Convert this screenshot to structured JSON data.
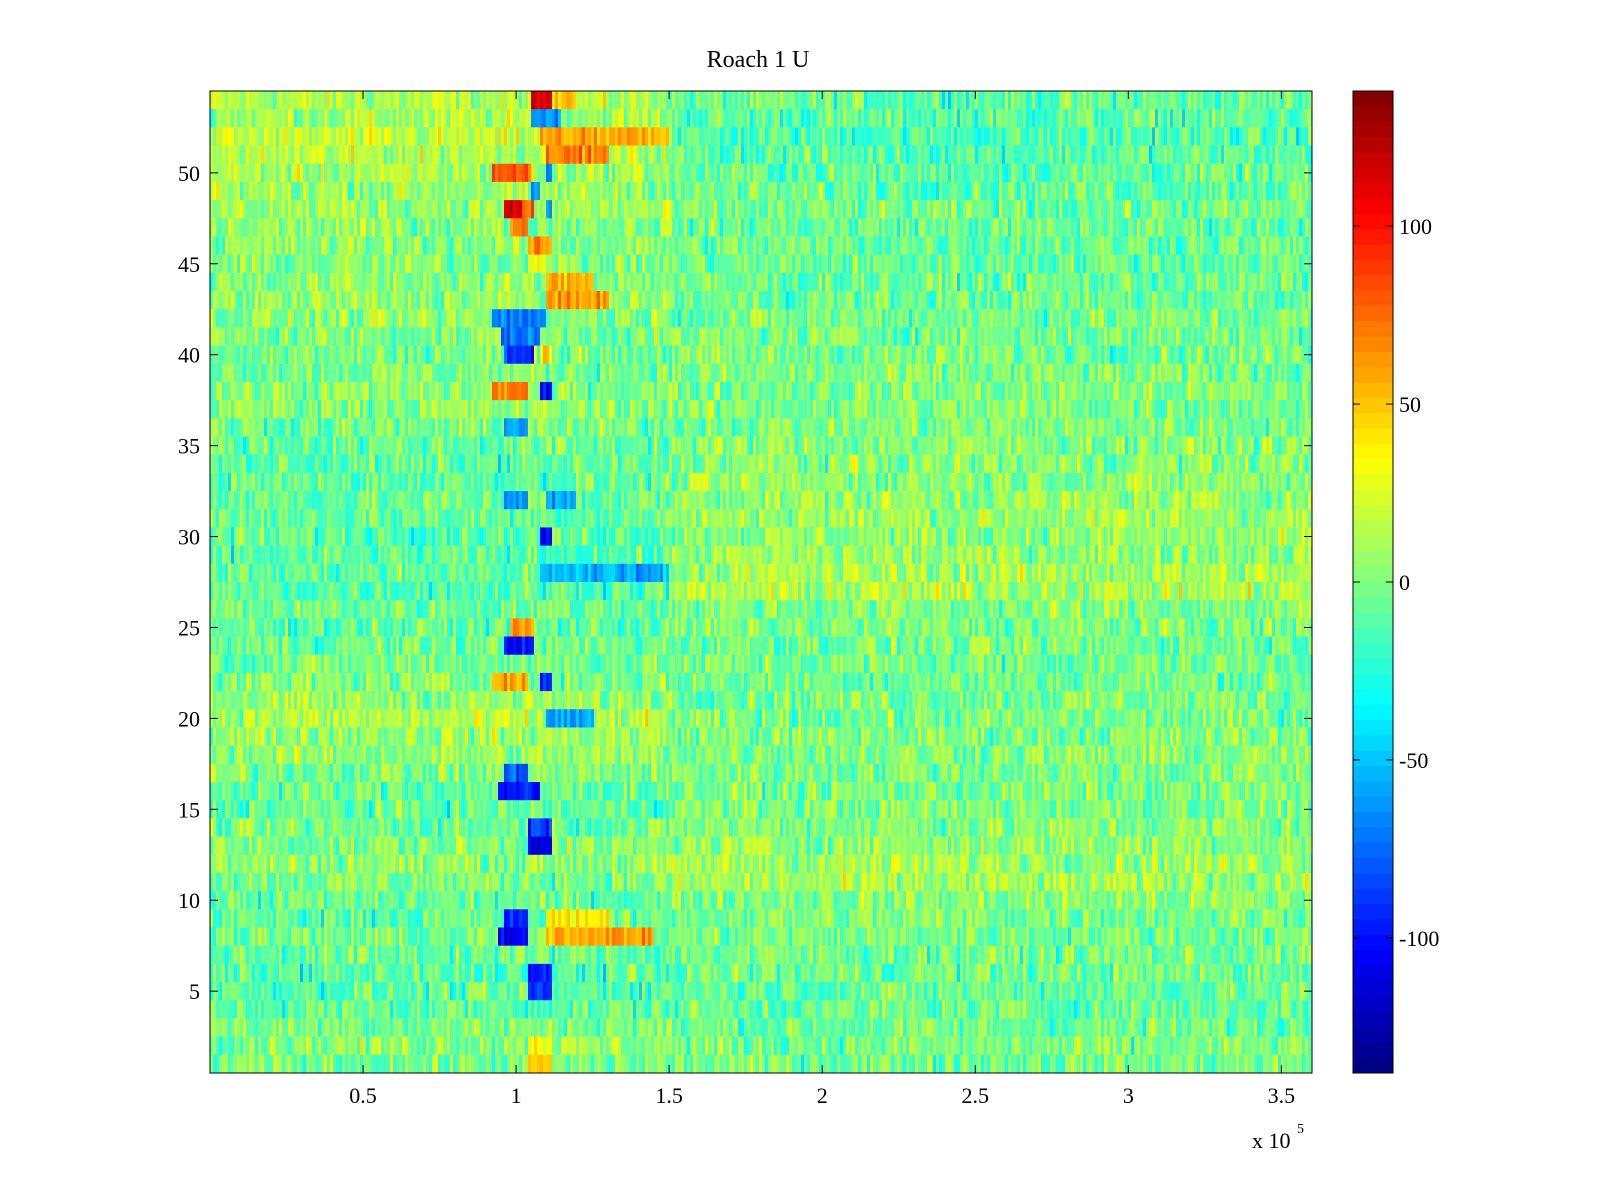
{
  "chart_data": {
    "type": "heatmap",
    "title": "Roach 1 U",
    "xlabel": "",
    "ylabel": "",
    "x_range": [
      0,
      360000
    ],
    "y_range": [
      0.5,
      54.5
    ],
    "n_rows": 54,
    "x_scale_label": {
      "base": "x 10",
      "exponent": "5"
    },
    "x_ticks": [
      {
        "value": 50000,
        "label": "0.5"
      },
      {
        "value": 100000,
        "label": "1"
      },
      {
        "value": 150000,
        "label": "1.5"
      },
      {
        "value": 200000,
        "label": "2"
      },
      {
        "value": 250000,
        "label": "2.5"
      },
      {
        "value": 300000,
        "label": "3"
      },
      {
        "value": 350000,
        "label": "3.5"
      }
    ],
    "y_ticks": [
      {
        "value": 5,
        "label": "5"
      },
      {
        "value": 10,
        "label": "10"
      },
      {
        "value": 15,
        "label": "15"
      },
      {
        "value": 20,
        "label": "20"
      },
      {
        "value": 25,
        "label": "25"
      },
      {
        "value": 30,
        "label": "30"
      },
      {
        "value": 35,
        "label": "35"
      },
      {
        "value": 40,
        "label": "40"
      },
      {
        "value": 45,
        "label": "45"
      },
      {
        "value": 50,
        "label": "50"
      }
    ],
    "colorbar": {
      "colormap": "jet",
      "range": [
        -138,
        138
      ],
      "ticks": [
        {
          "value": 100,
          "label": "100"
        },
        {
          "value": 50,
          "label": "50"
        },
        {
          "value": 0,
          "label": "0"
        },
        {
          "value": -50,
          "label": "-50"
        },
        {
          "value": -100,
          "label": "-100"
        }
      ]
    },
    "row_baselines": [
      -3,
      5,
      0,
      -8,
      -10,
      -12,
      -6,
      -4,
      -8,
      -7,
      0,
      5,
      0,
      -5,
      -8,
      -6,
      0,
      5,
      8,
      12,
      5,
      0,
      -2,
      -5,
      -8,
      -4,
      -10,
      -8,
      -12,
      -8,
      -6,
      -6,
      -8,
      -10,
      -6,
      -4,
      4,
      2,
      0,
      -2,
      0,
      3,
      4,
      3,
      0,
      2,
      4,
      8,
      8,
      10,
      14,
      16,
      10,
      12
    ],
    "late_region_baselines": [
      -2,
      -2,
      -5,
      -6,
      -6,
      -4,
      -3,
      -2,
      0,
      2,
      8,
      10,
      6,
      2,
      0,
      -2,
      0,
      2,
      0,
      -3,
      0,
      -3,
      -3,
      -3,
      -2,
      0,
      12,
      10,
      6,
      4,
      8,
      6,
      4,
      2,
      2,
      0,
      0,
      0,
      -2,
      -2,
      -2,
      -2,
      -5,
      -6,
      -6,
      -5,
      -6,
      -5,
      -6,
      -8,
      -10,
      -14,
      -10,
      -8
    ],
    "anomaly_blocks": [
      {
        "row": 54,
        "x_start": 105000,
        "x_end": 112000,
        "value": 110
      },
      {
        "row": 54,
        "x_start": 112000,
        "x_end": 120000,
        "value": 60
      },
      {
        "row": 53,
        "x_start": 105000,
        "x_end": 115000,
        "value": -60
      },
      {
        "row": 52,
        "x_start": 108000,
        "x_end": 150000,
        "value": 55
      },
      {
        "row": 51,
        "x_start": 110000,
        "x_end": 130000,
        "value": 70
      },
      {
        "row": 50,
        "x_start": 92000,
        "x_end": 105000,
        "value": 80
      },
      {
        "row": 50,
        "x_start": 110000,
        "x_end": 112000,
        "value": -70
      },
      {
        "row": 49,
        "x_start": 105000,
        "x_end": 108000,
        "value": -70
      },
      {
        "row": 48,
        "x_start": 96000,
        "x_end": 102000,
        "value": 115
      },
      {
        "row": 48,
        "x_start": 102000,
        "x_end": 106000,
        "value": 80
      },
      {
        "row": 48,
        "x_start": 110000,
        "x_end": 112000,
        "value": -60
      },
      {
        "row": 47,
        "x_start": 98000,
        "x_end": 104000,
        "value": 70
      },
      {
        "row": 46,
        "x_start": 104000,
        "x_end": 112000,
        "value": 60
      },
      {
        "row": 45,
        "x_start": 104000,
        "x_end": 110000,
        "value": 40
      },
      {
        "row": 44,
        "x_start": 110000,
        "x_end": 125000,
        "value": 55
      },
      {
        "row": 43,
        "x_start": 110000,
        "x_end": 130000,
        "value": 60
      },
      {
        "row": 42,
        "x_start": 92000,
        "x_end": 110000,
        "value": -70
      },
      {
        "row": 41,
        "x_start": 95000,
        "x_end": 108000,
        "value": -70
      },
      {
        "row": 40,
        "x_start": 96000,
        "x_end": 106000,
        "value": -90
      },
      {
        "row": 40,
        "x_start": 108000,
        "x_end": 112000,
        "value": 50
      },
      {
        "row": 38,
        "x_start": 92000,
        "x_end": 104000,
        "value": 70
      },
      {
        "row": 38,
        "x_start": 108000,
        "x_end": 112000,
        "value": -110
      },
      {
        "row": 36,
        "x_start": 96000,
        "x_end": 104000,
        "value": -60
      },
      {
        "row": 32,
        "x_start": 96000,
        "x_end": 104000,
        "value": -60
      },
      {
        "row": 32,
        "x_start": 110000,
        "x_end": 120000,
        "value": -60
      },
      {
        "row": 30,
        "x_start": 108000,
        "x_end": 112000,
        "value": -100
      },
      {
        "row": 28,
        "x_start": 108000,
        "x_end": 150000,
        "value": -55
      },
      {
        "row": 25,
        "x_start": 98000,
        "x_end": 106000,
        "value": 60
      },
      {
        "row": 24,
        "x_start": 96000,
        "x_end": 106000,
        "value": -100
      },
      {
        "row": 22,
        "x_start": 92000,
        "x_end": 104000,
        "value": 60
      },
      {
        "row": 22,
        "x_start": 108000,
        "x_end": 112000,
        "value": -90
      },
      {
        "row": 20,
        "x_start": 110000,
        "x_end": 125000,
        "value": -60
      },
      {
        "row": 17,
        "x_start": 96000,
        "x_end": 104000,
        "value": -80
      },
      {
        "row": 16,
        "x_start": 94000,
        "x_end": 108000,
        "value": -100
      },
      {
        "row": 14,
        "x_start": 104000,
        "x_end": 112000,
        "value": -90
      },
      {
        "row": 13,
        "x_start": 104000,
        "x_end": 112000,
        "value": -110
      },
      {
        "row": 9,
        "x_start": 96000,
        "x_end": 104000,
        "value": -100
      },
      {
        "row": 9,
        "x_start": 110000,
        "x_end": 130000,
        "value": 40
      },
      {
        "row": 8,
        "x_start": 94000,
        "x_end": 104000,
        "value": -110
      },
      {
        "row": 8,
        "x_start": 110000,
        "x_end": 145000,
        "value": 60
      },
      {
        "row": 6,
        "x_start": 104000,
        "x_end": 112000,
        "value": -100
      },
      {
        "row": 5,
        "x_start": 104000,
        "x_end": 112000,
        "value": -90
      },
      {
        "row": 1,
        "x_start": 104000,
        "x_end": 112000,
        "value": 45
      },
      {
        "row": 2,
        "x_start": 104000,
        "x_end": 112000,
        "value": 40
      }
    ],
    "transition_x": 151000,
    "noise_amplitude": 22,
    "grid": false,
    "legend": "none"
  }
}
